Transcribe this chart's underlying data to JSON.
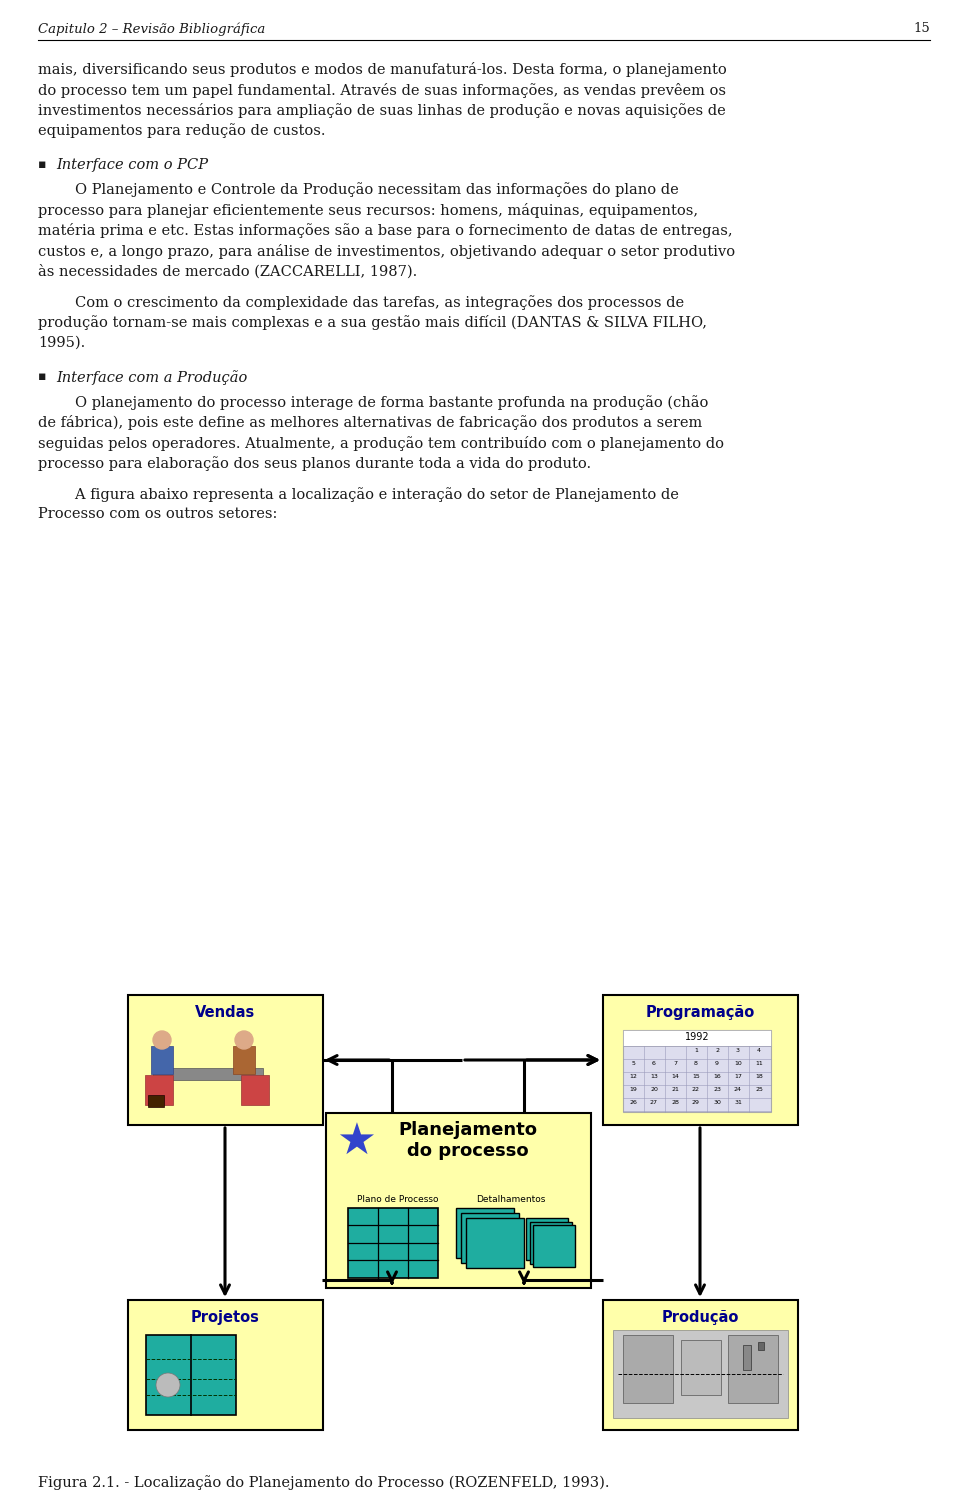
{
  "page_header": "Capitulo 2 – Revisão Bibliográfica",
  "page_number": "15",
  "para1": [
    "mais, diversificando seus produtos e modos de manufaturá-los. Desta forma, o planejamento",
    "do processo tem um papel fundamental. Através de suas informações, as vendas prevêem os",
    "investimentos necessários para ampliação de suas linhas de produção e novas aquisições de",
    "equipamentos para redução de custos."
  ],
  "bullet1": "Interface com o PCP",
  "para2": [
    "        O Planejamento e Controle da Produção necessitam das informações do plano de",
    "processo para planejar eficientemente seus recursos: homens, máquinas, equipamentos,",
    "matéria prima e etc. Estas informações são a base para o fornecimento de datas de entregas,",
    "custos e, a longo prazo, para análise de investimentos, objetivando adequar o setor produtivo",
    "às necessidades de mercado (ZACCARELLI, 1987)."
  ],
  "para3": [
    "        Com o crescimento da complexidade das tarefas, as integrações dos processos de",
    "produção tornam-se mais complexas e a sua gestão mais difícil (DANTAS & SILVA FILHO,",
    "1995)."
  ],
  "bullet2": "Interface com a Produção",
  "para4": [
    "        O planejamento do processo interage de forma bastante profunda na produção (chão",
    "de fábrica), pois este define as melhores alternativas de fabricação dos produtos a serem",
    "seguidas pelos operadores. Atualmente, a produção tem contribuído com o planejamento do",
    "processo para elaboração dos seus planos durante toda a vida do produto."
  ],
  "para5": [
    "        A figura abaixo representa a localização e interação do setor de Planejamento de",
    "Processo com os outros setores:"
  ],
  "caption": "Figura 2.1. - Localização do Planejamento do Processo (ROZENFELD, 1993).",
  "box_fill": "#FFFFAA",
  "teal": "#1FADA0",
  "star_color": "#3344CC",
  "arrow_color": "#111111",
  "text_color": "#1a1a1a",
  "body_fs": 10.5,
  "header_fs": 9.5,
  "lh": 20.5
}
